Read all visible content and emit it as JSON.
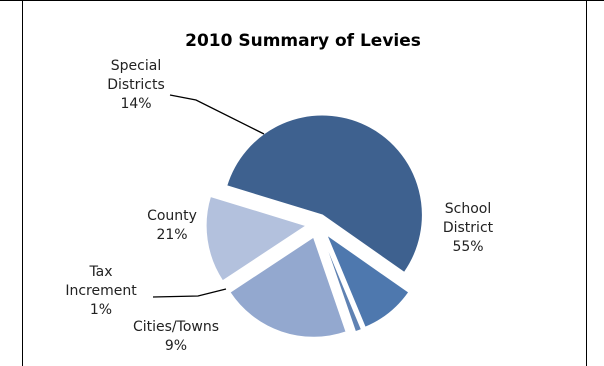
{
  "chart_data": {
    "type": "pie",
    "title": "2010 Summary of Levies",
    "slices": [
      {
        "label_lines": [
          "School",
          "District"
        ],
        "percent_text": "55%",
        "value": 55,
        "color": "#3e618f"
      },
      {
        "label_lines": [
          "Cities/Towns"
        ],
        "percent_text": "9%",
        "value": 9,
        "color": "#4e78ae"
      },
      {
        "label_lines": [
          "Tax",
          "Increment"
        ],
        "percent_text": "1%",
        "value": 1,
        "color": "#5f82b3"
      },
      {
        "label_lines": [
          "County"
        ],
        "percent_text": "21%",
        "value": 21,
        "color": "#93a8cf"
      },
      {
        "label_lines": [
          "Special",
          "Districts"
        ],
        "percent_text": "14%",
        "value": 14,
        "color": "#b3c1dd"
      }
    ]
  }
}
